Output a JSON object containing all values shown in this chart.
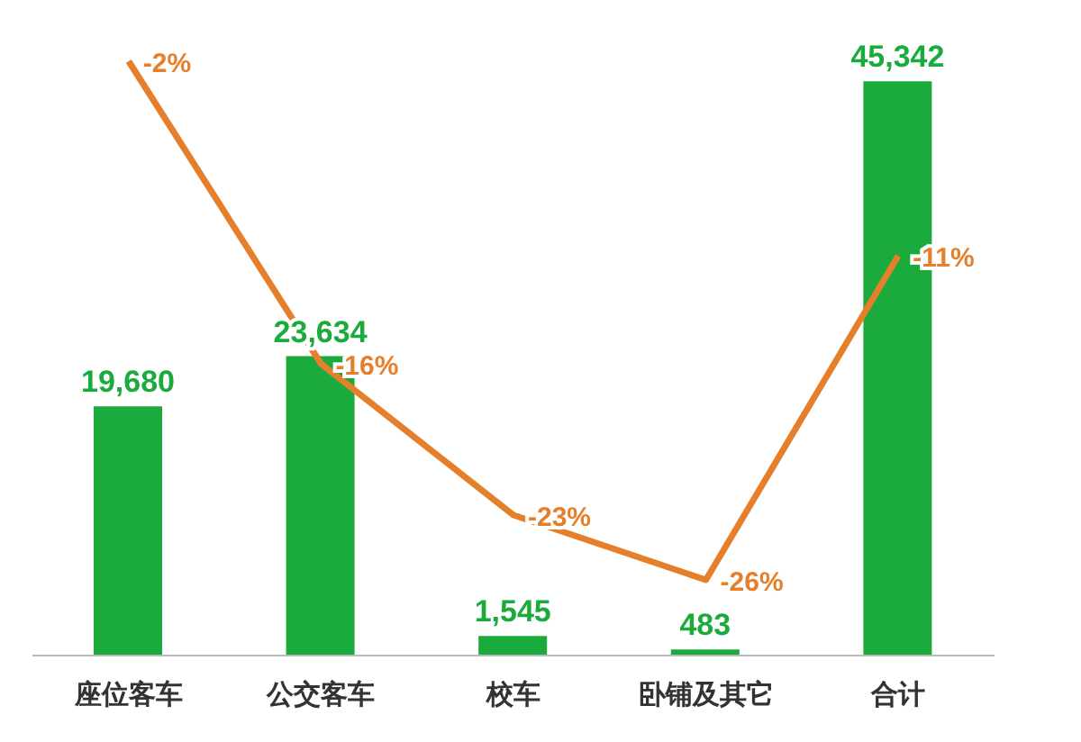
{
  "chart_data": {
    "type": "bar",
    "categories": [
      "座位客车",
      "公交客车",
      "校车",
      "卧铺及其它",
      "合计"
    ],
    "series": [
      {
        "color": "#1aab3c",
        "values": [
          19680,
          23634,
          1545,
          483,
          45342
        ],
        "value_labels": [
          "19,680",
          "23,634",
          "1,545",
          "483",
          "45,342"
        ]
      },
      {
        "type": "line",
        "axis": "y2",
        "color": "#e57f2b",
        "values": [
          -2,
          -16,
          -23,
          -26,
          -11
        ],
        "value_labels": [
          "-2%",
          "-16%",
          "-23%",
          "-26%",
          "-11%"
        ]
      }
    ],
    "tick_labels": "x",
    "marker": "none",
    "line_style": "solid"
  }
}
